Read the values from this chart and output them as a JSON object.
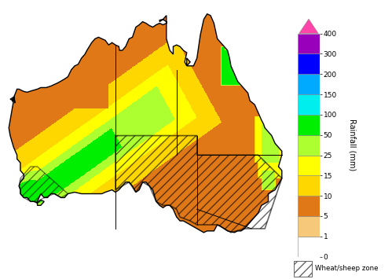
{
  "colorbar_levels": [
    0,
    1,
    5,
    10,
    15,
    25,
    50,
    100,
    150,
    200,
    300,
    400
  ],
  "colorbar_colors": [
    "#FFFFFF",
    "#F5C87A",
    "#E07818",
    "#FFD700",
    "#FFFF00",
    "#ADFF2F",
    "#00EE00",
    "#00EEEE",
    "#00AAFF",
    "#0000FF",
    "#9900BB",
    "#FF00FF"
  ],
  "colorbar_label": "Rainfall (mm)",
  "colorbar_tick_labels": [
    "0",
    "1",
    "5",
    "10",
    "15",
    "25",
    "50",
    "100",
    "150",
    "200",
    "300",
    "400"
  ],
  "wheat_sheep_label": "Wheat/sheep zone",
  "background_color": "#FFFFFF",
  "triangle_color": "#FF44AA",
  "state_border_color": "#000000",
  "coast_color": "#000000"
}
